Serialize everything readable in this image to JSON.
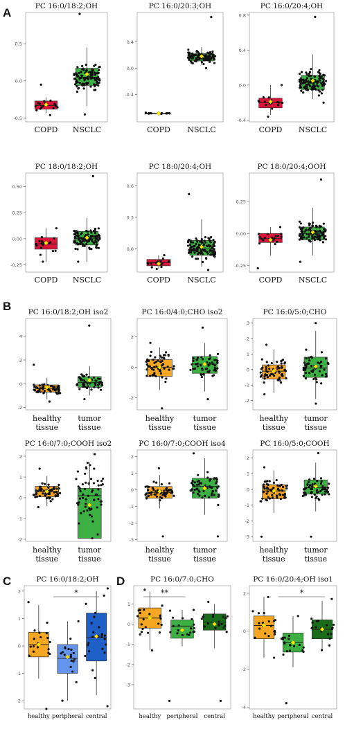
{
  "chart_data": [
    {
      "panel": "A",
      "type": "box",
      "title": "PC 16:0/18:2;OH",
      "categories": [
        "COPD",
        "NSCLC"
      ],
      "colors": [
        "#dc143c",
        "#3cb043"
      ],
      "ylim": [
        -0.55,
        0.92
      ],
      "yticks": [
        "-0.5",
        "0.0",
        "0.5"
      ],
      "ytick_values": [
        -0.5,
        0,
        0.5
      ],
      "stats": [
        {
          "q1": -0.38,
          "median": -0.33,
          "q3": -0.27,
          "lo": -0.43,
          "hi": -0.22,
          "mean": -0.32,
          "n": 18,
          "min": -0.46,
          "max": -0.05
        },
        {
          "q1": -0.06,
          "median": 0.05,
          "q3": 0.17,
          "lo": -0.34,
          "hi": 0.45,
          "mean": 0.09,
          "n": 110,
          "min": -0.45,
          "max": 0.9
        }
      ]
    },
    {
      "panel": "A",
      "type": "box",
      "title": "PC 16:0/20:3;OH",
      "categories": [
        "COPD",
        "NSCLC"
      ],
      "colors": [
        "#dc143c",
        "#3cb043"
      ],
      "ylim": [
        -0.82,
        0.85
      ],
      "yticks": [
        "-0.4",
        "0.0",
        "0.4"
      ],
      "ytick_values": [
        -0.4,
        0,
        0.4
      ],
      "stats": [
        {
          "q1": -0.695,
          "median": -0.69,
          "q3": -0.685,
          "lo": -0.7,
          "hi": -0.68,
          "mean": -0.69,
          "n": 14,
          "min": -0.7,
          "max": -0.68
        },
        {
          "q1": 0.11,
          "median": 0.17,
          "q3": 0.22,
          "lo": 0.05,
          "hi": 0.32,
          "mean": 0.18,
          "n": 105,
          "min": 0.0,
          "max": 0.78
        }
      ]
    },
    {
      "panel": "A",
      "type": "box",
      "title": "PC 16:0/20:4;OH",
      "categories": [
        "COPD",
        "NSCLC"
      ],
      "colors": [
        "#dc143c",
        "#3cb043"
      ],
      "ylim": [
        -0.42,
        0.83
      ],
      "yticks": [
        "-0.4",
        "0.0",
        "0.4",
        "0.8"
      ],
      "ytick_values": [
        -0.4,
        0,
        0.4,
        0.8
      ],
      "stats": [
        {
          "q1": -0.26,
          "median": -0.2,
          "q3": -0.15,
          "lo": -0.34,
          "hi": 0.0,
          "mean": -0.19,
          "n": 18,
          "min": -0.36,
          "max": 0.0
        },
        {
          "q1": -0.05,
          "median": 0.03,
          "q3": 0.11,
          "lo": -0.16,
          "hi": 0.35,
          "mean": 0.05,
          "n": 110,
          "min": -0.2,
          "max": 0.78
        }
      ]
    },
    {
      "panel": "A",
      "type": "box",
      "title": "PC 18:0/18:2;OH",
      "categories": [
        "COPD",
        "NSCLC"
      ],
      "colors": [
        "#dc143c",
        "#3cb043"
      ],
      "ylim": [
        -0.32,
        0.63
      ],
      "yticks": [
        "-0.25",
        "0.00",
        "0.25",
        "0.50"
      ],
      "ytick_values": [
        -0.25,
        0,
        0.25,
        0.5
      ],
      "stats": [
        {
          "q1": -0.1,
          "median": -0.05,
          "q3": 0.01,
          "lo": -0.22,
          "hi": 0.1,
          "mean": -0.04,
          "n": 18,
          "min": -0.22,
          "max": 0.1
        },
        {
          "q1": -0.06,
          "median": 0.0,
          "q3": 0.07,
          "lo": -0.22,
          "hi": 0.2,
          "mean": 0.01,
          "n": 110,
          "min": -0.22,
          "max": 0.6
        }
      ]
    },
    {
      "panel": "A",
      "type": "box",
      "title": "PC 18:0/20:4;OH",
      "categories": [
        "COPD",
        "NSCLC"
      ],
      "colors": [
        "#dc143c",
        "#3cb043"
      ],
      "ylim": [
        -0.22,
        0.72
      ],
      "yticks": [
        "0.0",
        "0.3",
        "0.6"
      ],
      "ytick_values": [
        0,
        0.3,
        0.6
      ],
      "stats": [
        {
          "q1": -0.16,
          "median": -0.13,
          "q3": -0.1,
          "lo": -0.19,
          "hi": -0.06,
          "mean": -0.14,
          "n": 16,
          "min": -0.19,
          "max": -0.06
        },
        {
          "q1": -0.06,
          "median": 0.0,
          "q3": 0.08,
          "lo": -0.17,
          "hi": 0.28,
          "mean": 0.02,
          "n": 110,
          "min": -0.2,
          "max": 0.52
        }
      ]
    },
    {
      "panel": "A",
      "type": "box",
      "title": "PC 18:0/20:4;OOH",
      "categories": [
        "COPD",
        "NSCLC"
      ],
      "colors": [
        "#dc143c",
        "#3cb043"
      ],
      "ylim": [
        -0.3,
        0.47
      ],
      "yticks": [
        "-0.25",
        "0.00",
        "0.25"
      ],
      "ytick_values": [
        -0.25,
        0,
        0.25
      ],
      "stats": [
        {
          "q1": -0.07,
          "median": -0.04,
          "q3": 0.0,
          "lo": -0.17,
          "hi": 0.05,
          "mean": -0.05,
          "n": 18,
          "min": -0.27,
          "max": 0.05
        },
        {
          "q1": -0.05,
          "median": 0.0,
          "q3": 0.05,
          "lo": -0.17,
          "hi": 0.2,
          "mean": 0.01,
          "n": 110,
          "min": -0.22,
          "max": 0.42
        }
      ]
    },
    {
      "panel": "B",
      "type": "box",
      "title": "PC 16:0/18:2;OH iso2",
      "categories": [
        "healthy tissue",
        "tumor tissue"
      ],
      "colors": [
        "#f5a623",
        "#3cb043"
      ],
      "ylim": [
        -2.2,
        5.5
      ],
      "yticks": [
        "-2",
        "0",
        "2",
        "4"
      ],
      "ytick_values": [
        -2,
        0,
        2,
        4
      ],
      "stats": [
        {
          "q1": -0.7,
          "median": -0.4,
          "q3": -0.1,
          "lo": -1.3,
          "hi": 0.5,
          "mean": -0.3,
          "n": 60,
          "min": -1.5,
          "max": 1.6
        },
        {
          "q1": -0.3,
          "median": 0.1,
          "q3": 0.6,
          "lo": -1.0,
          "hi": 1.5,
          "mean": 0.3,
          "n": 55,
          "min": -1.3,
          "max": 4.9
        }
      ]
    },
    {
      "panel": "B",
      "type": "box",
      "title": "PC 16:0/4:0;CHO iso2",
      "categories": [
        "healthy tissue",
        "tumor tissue"
      ],
      "colors": [
        "#f5a623",
        "#3cb043"
      ],
      "ylim": [
        -2.8,
        3.2
      ],
      "yticks": [
        "-2",
        "0",
        "2"
      ],
      "ytick_values": [
        -2,
        0,
        2
      ],
      "stats": [
        {
          "q1": -0.6,
          "median": 0.0,
          "q3": 0.5,
          "lo": -1.5,
          "hi": 1.3,
          "mean": 0.0,
          "n": 60,
          "min": -2.7,
          "max": 1.6
        },
        {
          "q1": -0.4,
          "median": 0.2,
          "q3": 0.7,
          "lo": -1.6,
          "hi": 1.6,
          "mean": 0.2,
          "n": 55,
          "min": -2.1,
          "max": 2.6
        }
      ]
    },
    {
      "panel": "B",
      "type": "box",
      "title": "PC 16:0/5:0;CHO",
      "categories": [
        "healthy tissue",
        "tumor tissue"
      ],
      "colors": [
        "#f5a623",
        "#3cb043"
      ],
      "ylim": [
        -2.6,
        3.3
      ],
      "yticks": [
        "-2",
        "-1",
        "0",
        "1",
        "2",
        "3"
      ],
      "ytick_values": [
        -2,
        -1,
        0,
        1,
        2,
        3
      ],
      "stats": [
        {
          "q1": -0.6,
          "median": -0.1,
          "q3": 0.3,
          "lo": -1.5,
          "hi": 1.3,
          "mean": -0.1,
          "n": 60,
          "min": -1.6,
          "max": 1.6
        },
        {
          "q1": -0.5,
          "median": 0.1,
          "q3": 0.8,
          "lo": -1.9,
          "hi": 2.5,
          "mean": 0.2,
          "n": 55,
          "min": -2.2,
          "max": 3.0
        }
      ]
    },
    {
      "panel": "B",
      "type": "box",
      "title": "PC 16:0/7:0;COOH iso2",
      "categories": [
        "healthy tissue",
        "tumor tissue"
      ],
      "colors": [
        "#f5a623",
        "#3cb043"
      ],
      "ylim": [
        -2.1,
        2.3
      ],
      "yticks": [
        "-2",
        "-1",
        "0",
        "1",
        "2"
      ],
      "ytick_values": [
        -2,
        -1,
        0,
        1,
        2
      ],
      "stats": [
        {
          "q1": 0.05,
          "median": 0.3,
          "q3": 0.55,
          "lo": -0.4,
          "hi": 1.05,
          "mean": 0.3,
          "n": 60,
          "min": -0.45,
          "max": 1.4
        },
        {
          "q1": -1.95,
          "median": 0.1,
          "q3": 0.45,
          "lo": -1.95,
          "hi": 1.7,
          "mean": -0.35,
          "n": 60,
          "min": -1.95,
          "max": 2.1
        }
      ]
    },
    {
      "panel": "B",
      "type": "box",
      "title": "PC 16:0/7:0;COOH iso4",
      "categories": [
        "healthy tissue",
        "tumor tissue"
      ],
      "colors": [
        "#f5a623",
        "#3cb043"
      ],
      "ylim": [
        -3.1,
        2.4
      ],
      "yticks": [
        "-3",
        "-2",
        "-1",
        "0",
        "1",
        "2"
      ],
      "ytick_values": [
        -3,
        -2,
        -1,
        0,
        1,
        2
      ],
      "stats": [
        {
          "q1": -0.5,
          "median": -0.15,
          "q3": 0.2,
          "lo": -1.1,
          "hi": 0.9,
          "mean": -0.1,
          "n": 60,
          "min": -2.8,
          "max": 1.3
        },
        {
          "q1": -0.5,
          "median": 0.2,
          "q3": 0.7,
          "lo": -1.5,
          "hi": 1.9,
          "mean": 0.1,
          "n": 58,
          "min": -2.8,
          "max": 2.2
        }
      ]
    },
    {
      "panel": "B",
      "type": "box",
      "title": "PC 16:0/5:0;COOH",
      "categories": [
        "healthy tissue",
        "tumor tissue"
      ],
      "colors": [
        "#f5a623",
        "#3cb043"
      ],
      "ylim": [
        -3.3,
        2.5
      ],
      "yticks": [
        "-3",
        "-2",
        "-1",
        "0",
        "1",
        "2"
      ],
      "ytick_values": [
        -3,
        -2,
        -1,
        0,
        1,
        2
      ],
      "stats": [
        {
          "q1": -0.6,
          "median": -0.1,
          "q3": 0.3,
          "lo": -1.5,
          "hi": 1.2,
          "mean": -0.1,
          "n": 60,
          "min": -3.0,
          "max": 1.4
        },
        {
          "q1": -0.3,
          "median": 0.1,
          "q3": 0.6,
          "lo": -1.4,
          "hi": 1.7,
          "mean": 0.2,
          "n": 58,
          "min": -3.0,
          "max": 2.3
        }
      ]
    },
    {
      "panel": "C",
      "type": "box",
      "title": "PC 16:0/18:2;OH",
      "categories": [
        "healthy",
        "peripheral",
        "central"
      ],
      "colors": [
        "#f5a623",
        "#6495ed",
        "#1e5fc8"
      ],
      "ylim": [
        -2.3,
        2.2
      ],
      "yticks": [
        "-2",
        "-1",
        "0",
        "1",
        "2"
      ],
      "ytick_values": [
        -2,
        -1,
        0,
        1,
        2
      ],
      "annotation": "*",
      "stats": [
        {
          "q1": -0.4,
          "median": 0.05,
          "q3": 0.5,
          "lo": -1.2,
          "hi": 1.5,
          "mean": 0.05,
          "n": 20,
          "min": -2.3,
          "max": 1.6
        },
        {
          "q1": -1.0,
          "median": -0.45,
          "q3": 0.05,
          "lo": -2.0,
          "hi": 0.9,
          "mean": -0.4,
          "n": 20,
          "min": -2.0,
          "max": 0.9
        },
        {
          "q1": -0.55,
          "median": 0.3,
          "q3": 1.2,
          "lo": -1.8,
          "hi": 2.0,
          "mean": 0.35,
          "n": 25,
          "min": -2.2,
          "max": 2.1
        }
      ]
    },
    {
      "panel": "D",
      "type": "box",
      "title": "PC 16:0/7:0;CHO",
      "categories": [
        "healthy",
        "peripheral",
        "central"
      ],
      "colors": [
        "#f5a623",
        "#3cb043",
        "#1a6b1a"
      ],
      "ylim": [
        -4.2,
        1.9
      ],
      "yticks": [
        "-3",
        "-2",
        "-1",
        "0",
        "1"
      ],
      "ytick_values": [
        -3,
        -2,
        -1,
        0,
        1
      ],
      "annotation": "**",
      "stats": [
        {
          "q1": -0.2,
          "median": 0.3,
          "q3": 0.8,
          "lo": -1.3,
          "hi": 1.6,
          "mean": 0.3,
          "n": 22,
          "min": -1.3,
          "max": 1.7
        },
        {
          "q1": -0.7,
          "median": -0.1,
          "q3": 0.2,
          "lo": -1.1,
          "hi": 0.7,
          "mean": -0.3,
          "n": 20,
          "min": -3.8,
          "max": 0.7
        },
        {
          "q1": -0.3,
          "median": 0.1,
          "q3": 0.5,
          "lo": -1.2,
          "hi": 1.0,
          "mean": 0.0,
          "n": 20,
          "min": -3.8,
          "max": 1.1
        }
      ]
    },
    {
      "panel": "D",
      "type": "box",
      "title": "PC 16:0/20:4;OH iso1",
      "categories": [
        "healthy",
        "peripheral",
        "central"
      ],
      "colors": [
        "#f5a623",
        "#3cb043",
        "#1a6b1a"
      ],
      "ylim": [
        -4.1,
        2.4
      ],
      "yticks": [
        "-4",
        "-2",
        "0",
        "2"
      ],
      "ytick_values": [
        -4,
        -2,
        0,
        2
      ],
      "annotation": "*",
      "stats": [
        {
          "q1": -0.4,
          "median": 0.3,
          "q3": 0.8,
          "lo": -1.4,
          "hi": 1.8,
          "mean": 0.3,
          "n": 20,
          "min": -1.4,
          "max": 1.8
        },
        {
          "q1": -1.1,
          "median": -0.6,
          "q3": -0.1,
          "lo": -1.9,
          "hi": 0.8,
          "mean": -0.6,
          "n": 20,
          "min": -3.8,
          "max": 0.8
        },
        {
          "q1": -0.4,
          "median": 0.1,
          "q3": 0.6,
          "lo": -1.0,
          "hi": 1.6,
          "mean": 0.1,
          "n": 20,
          "min": -1.0,
          "max": 1.7
        }
      ]
    }
  ],
  "panel_letters": [
    "A",
    "B",
    "C",
    "D"
  ]
}
